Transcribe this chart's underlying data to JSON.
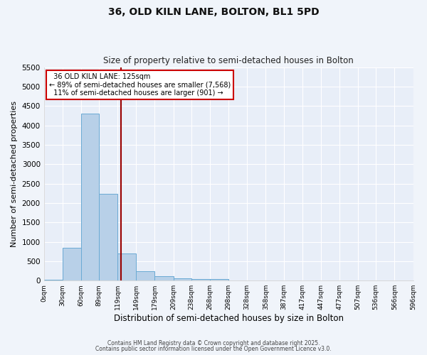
{
  "title": "36, OLD KILN LANE, BOLTON, BL1 5PD",
  "subtitle": "Size of property relative to semi-detached houses in Bolton",
  "xlabel": "Distribution of semi-detached houses by size in Bolton",
  "ylabel": "Number of semi-detached properties",
  "property_size": 125,
  "property_label": "36 OLD KILN LANE: 125sqm",
  "pct_smaller": 89,
  "count_smaller": "7,568",
  "pct_larger": 11,
  "count_larger": "901",
  "bin_edges": [
    0,
    30,
    60,
    89,
    119,
    149,
    179,
    209,
    238,
    268,
    298,
    328,
    358,
    387,
    417,
    447,
    477,
    507,
    536,
    566,
    596
  ],
  "bin_counts": [
    30,
    840,
    4310,
    2240,
    690,
    250,
    120,
    60,
    40,
    40,
    0,
    0,
    0,
    0,
    0,
    0,
    0,
    0,
    0,
    0
  ],
  "bar_color": "#b8d0e8",
  "bar_edge_color": "#6aaad4",
  "vline_color": "#990000",
  "vline_x": 125,
  "annotation_box_color": "#cc0000",
  "background_color": "#e8eef8",
  "grid_color": "#ffffff",
  "fig_background": "#f0f4fa",
  "ylim": [
    0,
    5500
  ],
  "tick_labels": [
    "0sqm",
    "30sqm",
    "60sqm",
    "89sqm",
    "119sqm",
    "149sqm",
    "179sqm",
    "209sqm",
    "238sqm",
    "268sqm",
    "298sqm",
    "328sqm",
    "358sqm",
    "387sqm",
    "417sqm",
    "447sqm",
    "477sqm",
    "507sqm",
    "536sqm",
    "566sqm",
    "596sqm"
  ],
  "footer_line1": "Contains HM Land Registry data © Crown copyright and database right 2025.",
  "footer_line2": "Contains public sector information licensed under the Open Government Licence v3.0."
}
